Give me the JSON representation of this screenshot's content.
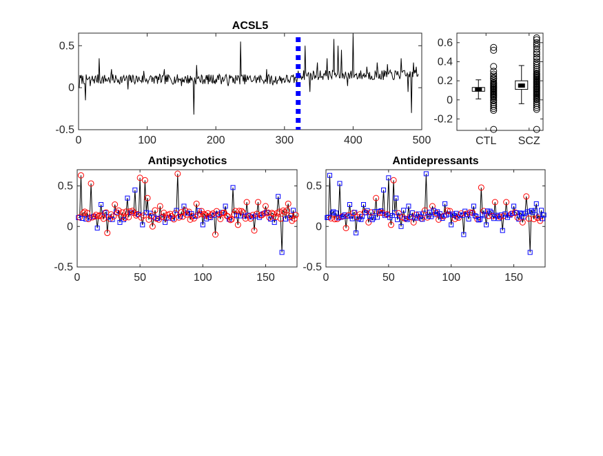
{
  "figure": {
    "background": "#ffffff"
  },
  "chart_data": [
    {
      "id": "acsl5-series",
      "type": "line",
      "title": "ACSL5",
      "xlim": [
        0,
        500
      ],
      "ylim": [
        -0.5,
        0.65
      ],
      "xticks": [
        0,
        100,
        200,
        300,
        400,
        500
      ],
      "yticks": [
        -0.5,
        0,
        0.5
      ],
      "xtick_labels": [
        "0",
        "100",
        "200",
        "300",
        "400",
        "500"
      ],
      "ytick_labels": [
        "-0.5",
        "0",
        "0.5"
      ],
      "n_points": 495,
      "line_color": "#000000",
      "base_levels": [
        {
          "from": 1,
          "to": 319,
          "level": 0.1
        },
        {
          "from": 320,
          "to": 495,
          "level": 0.15
        }
      ],
      "spikes": [
        {
          "x": 1,
          "y": 0.0
        },
        {
          "x": 10,
          "y": -0.15
        },
        {
          "x": 17,
          "y": 0.02
        },
        {
          "x": 30,
          "y": 0.35
        },
        {
          "x": 48,
          "y": 0.22
        },
        {
          "x": 72,
          "y": -0.02
        },
        {
          "x": 95,
          "y": 0.2
        },
        {
          "x": 125,
          "y": 0.22
        },
        {
          "x": 150,
          "y": 0.02
        },
        {
          "x": 168,
          "y": -0.32
        },
        {
          "x": 172,
          "y": 0.27
        },
        {
          "x": 205,
          "y": 0.16
        },
        {
          "x": 218,
          "y": 0.02
        },
        {
          "x": 236,
          "y": 0.55
        },
        {
          "x": 274,
          "y": 0.22
        },
        {
          "x": 283,
          "y": 0.03
        },
        {
          "x": 330,
          "y": 0.5
        },
        {
          "x": 337,
          "y": -0.05
        },
        {
          "x": 348,
          "y": 0.3
        },
        {
          "x": 362,
          "y": 0.35
        },
        {
          "x": 372,
          "y": 0.58
        },
        {
          "x": 378,
          "y": 0.5
        },
        {
          "x": 383,
          "y": 0.45
        },
        {
          "x": 392,
          "y": 0.02
        },
        {
          "x": 400,
          "y": 0.65
        },
        {
          "x": 420,
          "y": 0.25
        },
        {
          "x": 435,
          "y": 0.3
        },
        {
          "x": 450,
          "y": 0.28
        },
        {
          "x": 470,
          "y": 0.35
        },
        {
          "x": 480,
          "y": -0.05
        },
        {
          "x": 485,
          "y": -0.3
        },
        {
          "x": 488,
          "y": 0.3
        },
        {
          "x": 492,
          "y": 0.25
        }
      ],
      "divider": {
        "x": 320,
        "color": "#0000ff",
        "style": "dotted"
      }
    },
    {
      "id": "group-boxplot",
      "type": "box",
      "title": "",
      "categories": [
        "CTL",
        "SCZ"
      ],
      "ylim": [
        -0.32,
        0.7
      ],
      "yticks": [
        -0.2,
        0,
        0.2,
        0.4,
        0.6
      ],
      "ytick_labels": [
        "-0.2",
        "0",
        "0.2",
        "0.4",
        "0.6"
      ],
      "boxes": [
        {
          "name": "CTL",
          "median": 0.11,
          "q1": 0.09,
          "q3": 0.13,
          "whisker_low": 0.01,
          "whisker_high": 0.21,
          "outliers": [
            0.55,
            0.52,
            0.35,
            0.3,
            0.27,
            0.25,
            0.23,
            0.22,
            0.2,
            0.18,
            0.17,
            0.16,
            0.15,
            0.14,
            0.13,
            0.12,
            0.11,
            0.1,
            0.09,
            0.08,
            0.07,
            0.06,
            0.05,
            0.04,
            0.03,
            0.02,
            0.0,
            -0.01,
            -0.03,
            -0.05,
            -0.07,
            -0.09,
            -0.11,
            -0.31
          ]
        },
        {
          "name": "SCZ",
          "median": 0.15,
          "q1": 0.11,
          "q3": 0.2,
          "whisker_low": -0.04,
          "whisker_high": 0.36,
          "outliers": [
            0.65,
            0.63,
            0.6,
            0.58,
            0.56,
            0.53,
            0.5,
            0.48,
            0.45,
            0.43,
            0.4,
            0.38,
            0.36,
            0.34,
            0.32,
            0.3,
            0.28,
            0.27,
            0.26,
            0.25,
            0.24,
            0.23,
            0.22,
            0.21,
            0.2,
            0.19,
            0.18,
            0.17,
            0.16,
            0.15,
            0.14,
            0.13,
            0.12,
            0.11,
            0.1,
            0.09,
            0.08,
            0.07,
            0.06,
            0.05,
            0.04,
            0.03,
            0.02,
            0.01,
            0.0,
            -0.02,
            -0.04,
            -0.06,
            -0.08,
            -0.1,
            -0.31
          ]
        }
      ],
      "box_color": "#000000"
    },
    {
      "id": "antipsychotics",
      "type": "line",
      "title": "Antipsychotics",
      "xlim": [
        0,
        175
      ],
      "ylim": [
        -0.5,
        0.7
      ],
      "xticks": [
        0,
        50,
        100,
        150
      ],
      "yticks": [
        -0.5,
        0,
        0.5
      ],
      "xtick_labels": [
        "0",
        "50",
        "100",
        "150"
      ],
      "ytick_labels": [
        "-0.5",
        "0",
        "0.5"
      ],
      "n_points": 174,
      "line_color": "#000000",
      "base_level": 0.14,
      "spikes": [
        {
          "x": 3,
          "y": 0.63
        },
        {
          "x": 4,
          "y": 0.1
        },
        {
          "x": 11,
          "y": 0.53
        },
        {
          "x": 16,
          "y": -0.02
        },
        {
          "x": 19,
          "y": 0.27
        },
        {
          "x": 24,
          "y": -0.08
        },
        {
          "x": 30,
          "y": 0.27
        },
        {
          "x": 34,
          "y": 0.05
        },
        {
          "x": 40,
          "y": 0.35
        },
        {
          "x": 46,
          "y": 0.45
        },
        {
          "x": 50,
          "y": 0.6
        },
        {
          "x": 52,
          "y": 0.02
        },
        {
          "x": 54,
          "y": 0.57
        },
        {
          "x": 56,
          "y": 0.35
        },
        {
          "x": 60,
          "y": 0.0
        },
        {
          "x": 66,
          "y": 0.25
        },
        {
          "x": 70,
          "y": 0.05
        },
        {
          "x": 80,
          "y": 0.65
        },
        {
          "x": 85,
          "y": 0.25
        },
        {
          "x": 95,
          "y": 0.28
        },
        {
          "x": 100,
          "y": 0.02
        },
        {
          "x": 110,
          "y": -0.1
        },
        {
          "x": 118,
          "y": 0.25
        },
        {
          "x": 124,
          "y": 0.48
        },
        {
          "x": 128,
          "y": 0.02
        },
        {
          "x": 135,
          "y": 0.3
        },
        {
          "x": 141,
          "y": -0.05
        },
        {
          "x": 144,
          "y": 0.3
        },
        {
          "x": 150,
          "y": 0.25
        },
        {
          "x": 157,
          "y": 0.05
        },
        {
          "x": 160,
          "y": 0.37
        },
        {
          "x": 163,
          "y": -0.32
        },
        {
          "x": 168,
          "y": 0.28
        },
        {
          "x": 171,
          "y": 0.07
        }
      ],
      "series": [
        {
          "name": "",
          "marker": "circle",
          "color": "#ff0000",
          "mod": [
            1,
            2,
            4,
            5,
            7,
            8
          ]
        },
        {
          "name": "",
          "marker": "square",
          "color": "#0000ff",
          "mod": [
            0,
            3,
            6
          ]
        }
      ]
    },
    {
      "id": "antidepressants",
      "type": "line",
      "title": "Antidepressants",
      "xlim": [
        0,
        175
      ],
      "ylim": [
        -0.5,
        0.7
      ],
      "xticks": [
        0,
        50,
        100,
        150
      ],
      "yticks": [
        -0.5,
        0,
        0.5
      ],
      "xtick_labels": [
        "0",
        "50",
        "100",
        "150"
      ],
      "ytick_labels": [
        "-0.5",
        "0",
        "0.5"
      ],
      "n_points": 174,
      "line_color": "#000000",
      "base_level": 0.14,
      "spikes": [
        {
          "x": 3,
          "y": 0.63
        },
        {
          "x": 4,
          "y": 0.1
        },
        {
          "x": 11,
          "y": 0.53
        },
        {
          "x": 16,
          "y": -0.02
        },
        {
          "x": 19,
          "y": 0.27
        },
        {
          "x": 24,
          "y": -0.08
        },
        {
          "x": 30,
          "y": 0.27
        },
        {
          "x": 34,
          "y": 0.05
        },
        {
          "x": 40,
          "y": 0.35
        },
        {
          "x": 46,
          "y": 0.45
        },
        {
          "x": 50,
          "y": 0.6
        },
        {
          "x": 52,
          "y": 0.02
        },
        {
          "x": 54,
          "y": 0.57
        },
        {
          "x": 56,
          "y": 0.35
        },
        {
          "x": 60,
          "y": 0.0
        },
        {
          "x": 66,
          "y": 0.25
        },
        {
          "x": 70,
          "y": 0.05
        },
        {
          "x": 80,
          "y": 0.65
        },
        {
          "x": 85,
          "y": 0.25
        },
        {
          "x": 95,
          "y": 0.28
        },
        {
          "x": 100,
          "y": 0.02
        },
        {
          "x": 110,
          "y": -0.1
        },
        {
          "x": 118,
          "y": 0.25
        },
        {
          "x": 124,
          "y": 0.48
        },
        {
          "x": 128,
          "y": 0.02
        },
        {
          "x": 135,
          "y": 0.3
        },
        {
          "x": 141,
          "y": -0.05
        },
        {
          "x": 144,
          "y": 0.3
        },
        {
          "x": 150,
          "y": 0.25
        },
        {
          "x": 157,
          "y": 0.05
        },
        {
          "x": 160,
          "y": 0.37
        },
        {
          "x": 163,
          "y": -0.32
        },
        {
          "x": 168,
          "y": 0.28
        },
        {
          "x": 171,
          "y": 0.07
        }
      ],
      "series": [
        {
          "name": "",
          "marker": "square",
          "color": "#0000ff",
          "mod": [
            0,
            1,
            2,
            4,
            5,
            7
          ]
        },
        {
          "name": "",
          "marker": "circle",
          "color": "#ff0000",
          "mod": [
            3,
            6,
            8
          ]
        }
      ]
    }
  ]
}
